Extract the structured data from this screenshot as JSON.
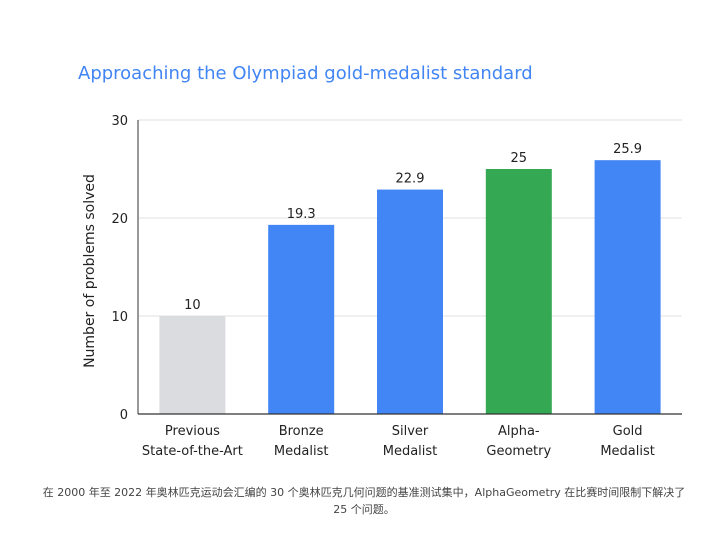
{
  "chart_data": {
    "type": "bar",
    "title": "Approaching the Olympiad gold-medalist standard",
    "xlabel": "",
    "ylabel": "Number of problems solved",
    "ylim": [
      0,
      30
    ],
    "yticks": [
      0,
      10,
      20,
      30
    ],
    "grid": true,
    "categories": [
      [
        "Previous",
        "State-of-the-Art"
      ],
      [
        "Bronze",
        "Medalist"
      ],
      [
        "Silver",
        "Medalist"
      ],
      [
        "Alpha-",
        "Geometry"
      ],
      [
        "Gold",
        "Medalist"
      ]
    ],
    "values": [
      10,
      19.3,
      22.9,
      25,
      25.9
    ],
    "value_labels": [
      "10",
      "19.3",
      "22.9",
      "25",
      "25.9"
    ],
    "bar_colors": [
      "#dadce0",
      "#4285f4",
      "#4285f4",
      "#34a853",
      "#4285f4"
    ]
  },
  "caption": "在 2000 年至 2022 年奥林匹克运动会汇编的 30 个奥林匹克几何问题的基准测试集中，AlphaGeometry 在比赛时间限制下解决了 25 个问题。",
  "colors": {
    "title": "#4285f4",
    "grid": "#e0e0e0",
    "axis": "#333333"
  }
}
